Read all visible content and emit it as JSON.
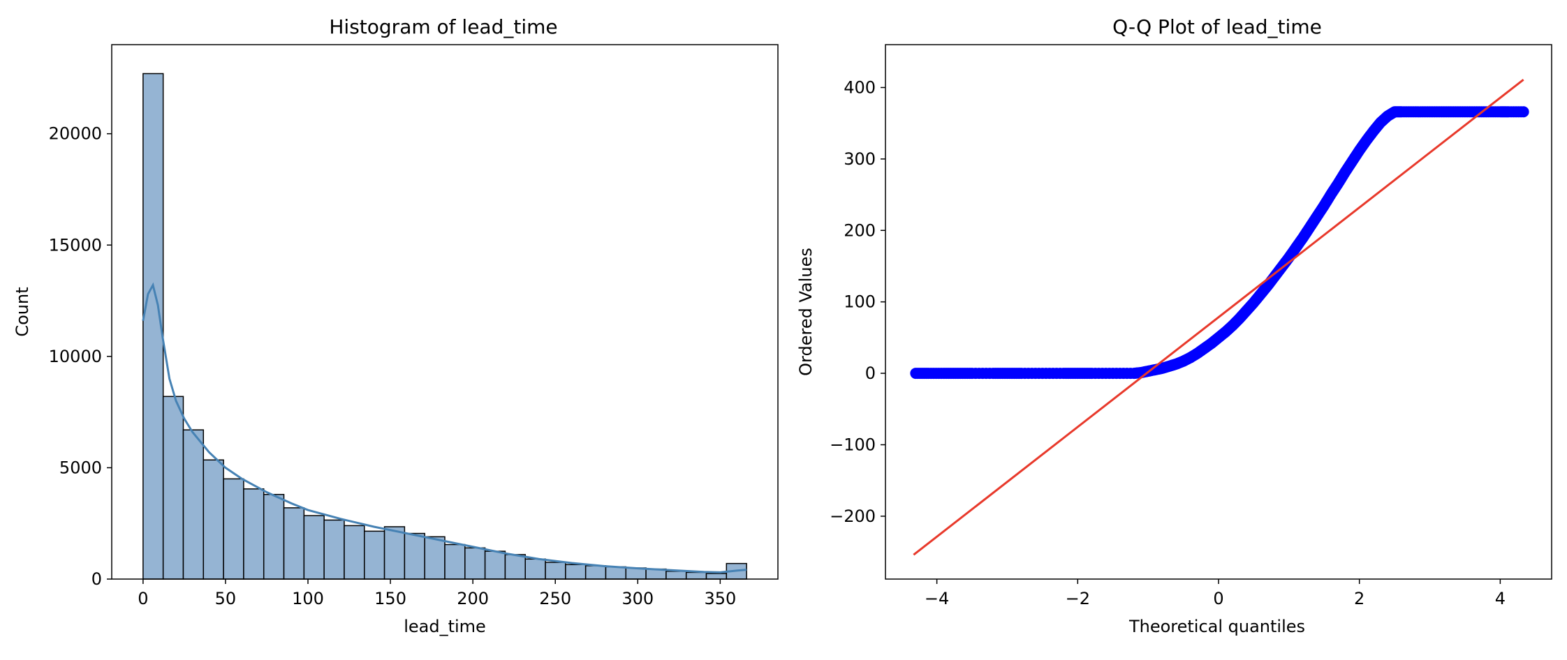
{
  "chart_data": [
    {
      "type": "bar",
      "title": "Histogram of lead_time",
      "xlabel": "lead_time",
      "ylabel": "Count",
      "xlim": [
        -19,
        385
      ],
      "ylim": [
        0,
        24000
      ],
      "xticks": [
        0,
        50,
        100,
        150,
        200,
        250,
        300,
        350
      ],
      "yticks": [
        0,
        5000,
        10000,
        15000,
        20000
      ],
      "bar_color": "#95b4d3",
      "edge_color": "#000000",
      "kde_color": "#4682b4",
      "bins": [
        {
          "start": 0,
          "end": 12.2,
          "value": 22700
        },
        {
          "start": 12.2,
          "end": 24.4,
          "value": 8200
        },
        {
          "start": 24.4,
          "end": 36.6,
          "value": 6700
        },
        {
          "start": 36.6,
          "end": 48.8,
          "value": 5350
        },
        {
          "start": 48.8,
          "end": 61.0,
          "value": 4500
        },
        {
          "start": 61.0,
          "end": 73.2,
          "value": 4050
        },
        {
          "start": 73.2,
          "end": 85.4,
          "value": 3800
        },
        {
          "start": 85.4,
          "end": 97.6,
          "value": 3200
        },
        {
          "start": 97.6,
          "end": 109.8,
          "value": 2850
        },
        {
          "start": 109.8,
          "end": 122.0,
          "value": 2650
        },
        {
          "start": 122.0,
          "end": 134.2,
          "value": 2400
        },
        {
          "start": 134.2,
          "end": 146.4,
          "value": 2150
        },
        {
          "start": 146.4,
          "end": 158.6,
          "value": 2350
        },
        {
          "start": 158.6,
          "end": 170.8,
          "value": 2050
        },
        {
          "start": 170.8,
          "end": 183.0,
          "value": 1900
        },
        {
          "start": 183.0,
          "end": 195.2,
          "value": 1550
        },
        {
          "start": 195.2,
          "end": 207.4,
          "value": 1400
        },
        {
          "start": 207.4,
          "end": 219.6,
          "value": 1250
        },
        {
          "start": 219.6,
          "end": 231.8,
          "value": 1100
        },
        {
          "start": 231.8,
          "end": 244.0,
          "value": 900
        },
        {
          "start": 244.0,
          "end": 256.2,
          "value": 750
        },
        {
          "start": 256.2,
          "end": 268.4,
          "value": 650
        },
        {
          "start": 268.4,
          "end": 280.6,
          "value": 600
        },
        {
          "start": 280.6,
          "end": 292.8,
          "value": 550
        },
        {
          "start": 292.8,
          "end": 305.0,
          "value": 500
        },
        {
          "start": 305.0,
          "end": 317.2,
          "value": 450
        },
        {
          "start": 317.2,
          "end": 329.4,
          "value": 350
        },
        {
          "start": 329.4,
          "end": 341.6,
          "value": 300
        },
        {
          "start": 341.6,
          "end": 353.8,
          "value": 250
        },
        {
          "start": 353.8,
          "end": 366.0,
          "value": 700
        }
      ],
      "kde": {
        "x": [
          0,
          3,
          6,
          9,
          12,
          16,
          20,
          25,
          30,
          40,
          50,
          60,
          75,
          90,
          100,
          120,
          140,
          160,
          180,
          200,
          220,
          240,
          260,
          280,
          300,
          320,
          340,
          350,
          360,
          366
        ],
        "y": [
          11600,
          12800,
          13200,
          12300,
          10800,
          9000,
          8000,
          7200,
          6600,
          5700,
          5000,
          4500,
          3900,
          3400,
          3100,
          2700,
          2350,
          2050,
          1750,
          1450,
          1150,
          900,
          720,
          580,
          480,
          400,
          320,
          300,
          380,
          420
        ]
      }
    },
    {
      "type": "scatter",
      "title": "Q-Q Plot of lead_time",
      "xlabel": "Theoretical quantiles",
      "ylabel": "Ordered Values",
      "xlim": [
        -4.73,
        4.73
      ],
      "ylim": [
        -288,
        460
      ],
      "xticks": [
        -4,
        -2,
        0,
        2,
        4
      ],
      "yticks": [
        -200,
        -100,
        0,
        100,
        200,
        300,
        400
      ],
      "point_color": "#0000ff",
      "line_color": "#e8392b",
      "points": {
        "x": [
          -4.3,
          -4.12,
          -3.9,
          -3.7,
          -3.5,
          -3.2,
          -3.0,
          -2.8,
          -2.5,
          -2.2,
          -2.0,
          -1.8,
          -1.5,
          -1.2,
          -1.1,
          -1.0,
          -0.9,
          -0.8,
          -0.7,
          -0.6,
          -0.5,
          -0.4,
          -0.3,
          -0.2,
          -0.1,
          0.0,
          0.1,
          0.2,
          0.3,
          0.4,
          0.5,
          0.6,
          0.7,
          0.8,
          0.9,
          1.0,
          1.1,
          1.2,
          1.3,
          1.4,
          1.5,
          1.6,
          1.7,
          1.8,
          1.9,
          2.0,
          2.1,
          2.2,
          2.3,
          2.4,
          2.5,
          2.6,
          2.8,
          3.0,
          3.2,
          3.4,
          3.6,
          3.8,
          4.0,
          4.12,
          4.33
        ],
        "y": [
          0,
          0,
          0,
          0,
          0,
          0,
          0,
          0,
          0,
          0,
          0,
          0,
          0,
          0,
          1,
          3,
          5,
          7,
          10,
          13,
          17,
          22,
          28,
          35,
          42,
          50,
          58,
          67,
          77,
          88,
          99,
          111,
          123,
          136,
          149,
          162,
          176,
          190,
          205,
          220,
          235,
          251,
          266,
          282,
          297,
          312,
          326,
          339,
          351,
          360,
          366,
          366,
          366,
          366,
          366,
          366,
          366,
          366,
          366,
          366,
          366
        ]
      },
      "fit_line": {
        "x": [
          -4.33,
          4.33
        ],
        "y": [
          -254,
          411
        ]
      }
    }
  ]
}
